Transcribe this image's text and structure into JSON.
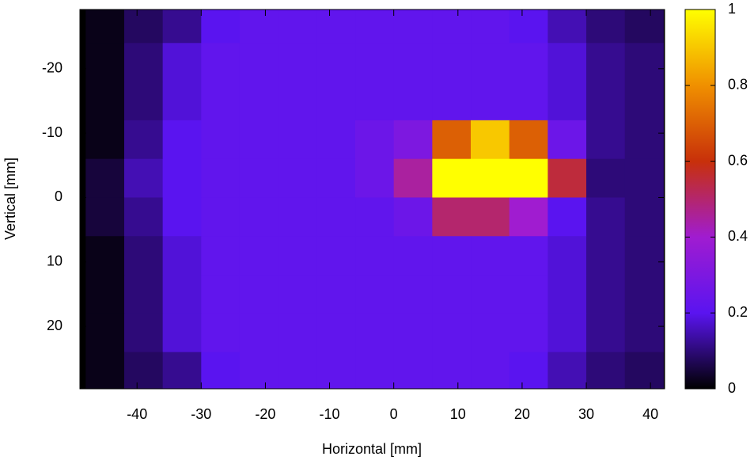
{
  "chart_data": {
    "type": "heatmap",
    "xlabel": "Horizontal [mm]",
    "ylabel": "Vertical [mm]",
    "x": [
      -45,
      -39,
      -33,
      -27,
      -21,
      -15,
      -9,
      -3,
      3,
      9,
      15,
      21,
      27,
      33,
      39
    ],
    "y": [
      -27,
      -21,
      -15,
      -9,
      -3,
      3,
      9,
      15,
      21,
      27
    ],
    "z": [
      [
        0.02,
        0.08,
        0.12,
        0.2,
        0.22,
        0.22,
        0.22,
        0.22,
        0.22,
        0.22,
        0.22,
        0.2,
        0.15,
        0.1,
        0.08
      ],
      [
        0.02,
        0.1,
        0.18,
        0.22,
        0.22,
        0.22,
        0.22,
        0.22,
        0.22,
        0.22,
        0.22,
        0.22,
        0.18,
        0.12,
        0.1
      ],
      [
        0.02,
        0.1,
        0.18,
        0.22,
        0.22,
        0.22,
        0.22,
        0.22,
        0.22,
        0.22,
        0.22,
        0.22,
        0.18,
        0.12,
        0.1
      ],
      [
        0.02,
        0.12,
        0.2,
        0.22,
        0.22,
        0.22,
        0.22,
        0.25,
        0.3,
        0.7,
        0.9,
        0.7,
        0.25,
        0.12,
        0.1
      ],
      [
        0.05,
        0.15,
        0.2,
        0.22,
        0.22,
        0.22,
        0.22,
        0.25,
        0.45,
        1,
        1,
        1,
        0.55,
        0.1,
        0.1
      ],
      [
        0.05,
        0.12,
        0.2,
        0.22,
        0.22,
        0.22,
        0.22,
        0.22,
        0.25,
        0.5,
        0.5,
        0.4,
        0.2,
        0.12,
        0.1
      ],
      [
        0.02,
        0.1,
        0.18,
        0.22,
        0.22,
        0.22,
        0.22,
        0.22,
        0.22,
        0.22,
        0.22,
        0.22,
        0.18,
        0.12,
        0.1
      ],
      [
        0.02,
        0.1,
        0.18,
        0.22,
        0.22,
        0.22,
        0.22,
        0.22,
        0.22,
        0.22,
        0.22,
        0.22,
        0.18,
        0.12,
        0.1
      ],
      [
        0.02,
        0.1,
        0.18,
        0.22,
        0.22,
        0.22,
        0.22,
        0.22,
        0.22,
        0.22,
        0.22,
        0.22,
        0.18,
        0.12,
        0.1
      ],
      [
        0.02,
        0.08,
        0.12,
        0.2,
        0.22,
        0.22,
        0.22,
        0.22,
        0.22,
        0.22,
        0.22,
        0.2,
        0.15,
        0.1,
        0.08
      ]
    ],
    "xlim": [
      -48.9,
      42.2
    ],
    "xticks": [
      -40,
      -30,
      -20,
      -10,
      0,
      10,
      20,
      30,
      40
    ],
    "ylim": [
      -29.2,
      29.7
    ],
    "yticks": [
      -20,
      -10,
      0,
      10,
      20
    ],
    "y_inverted": true,
    "zlim": [
      0,
      1
    ],
    "zticks": [
      0,
      0.2,
      0.4,
      0.6,
      0.8,
      1
    ],
    "colormap": [
      "#000000",
      "#5a14f0",
      "#a01cd0",
      "#c8300a",
      "#f09000",
      "#ffff00"
    ]
  }
}
